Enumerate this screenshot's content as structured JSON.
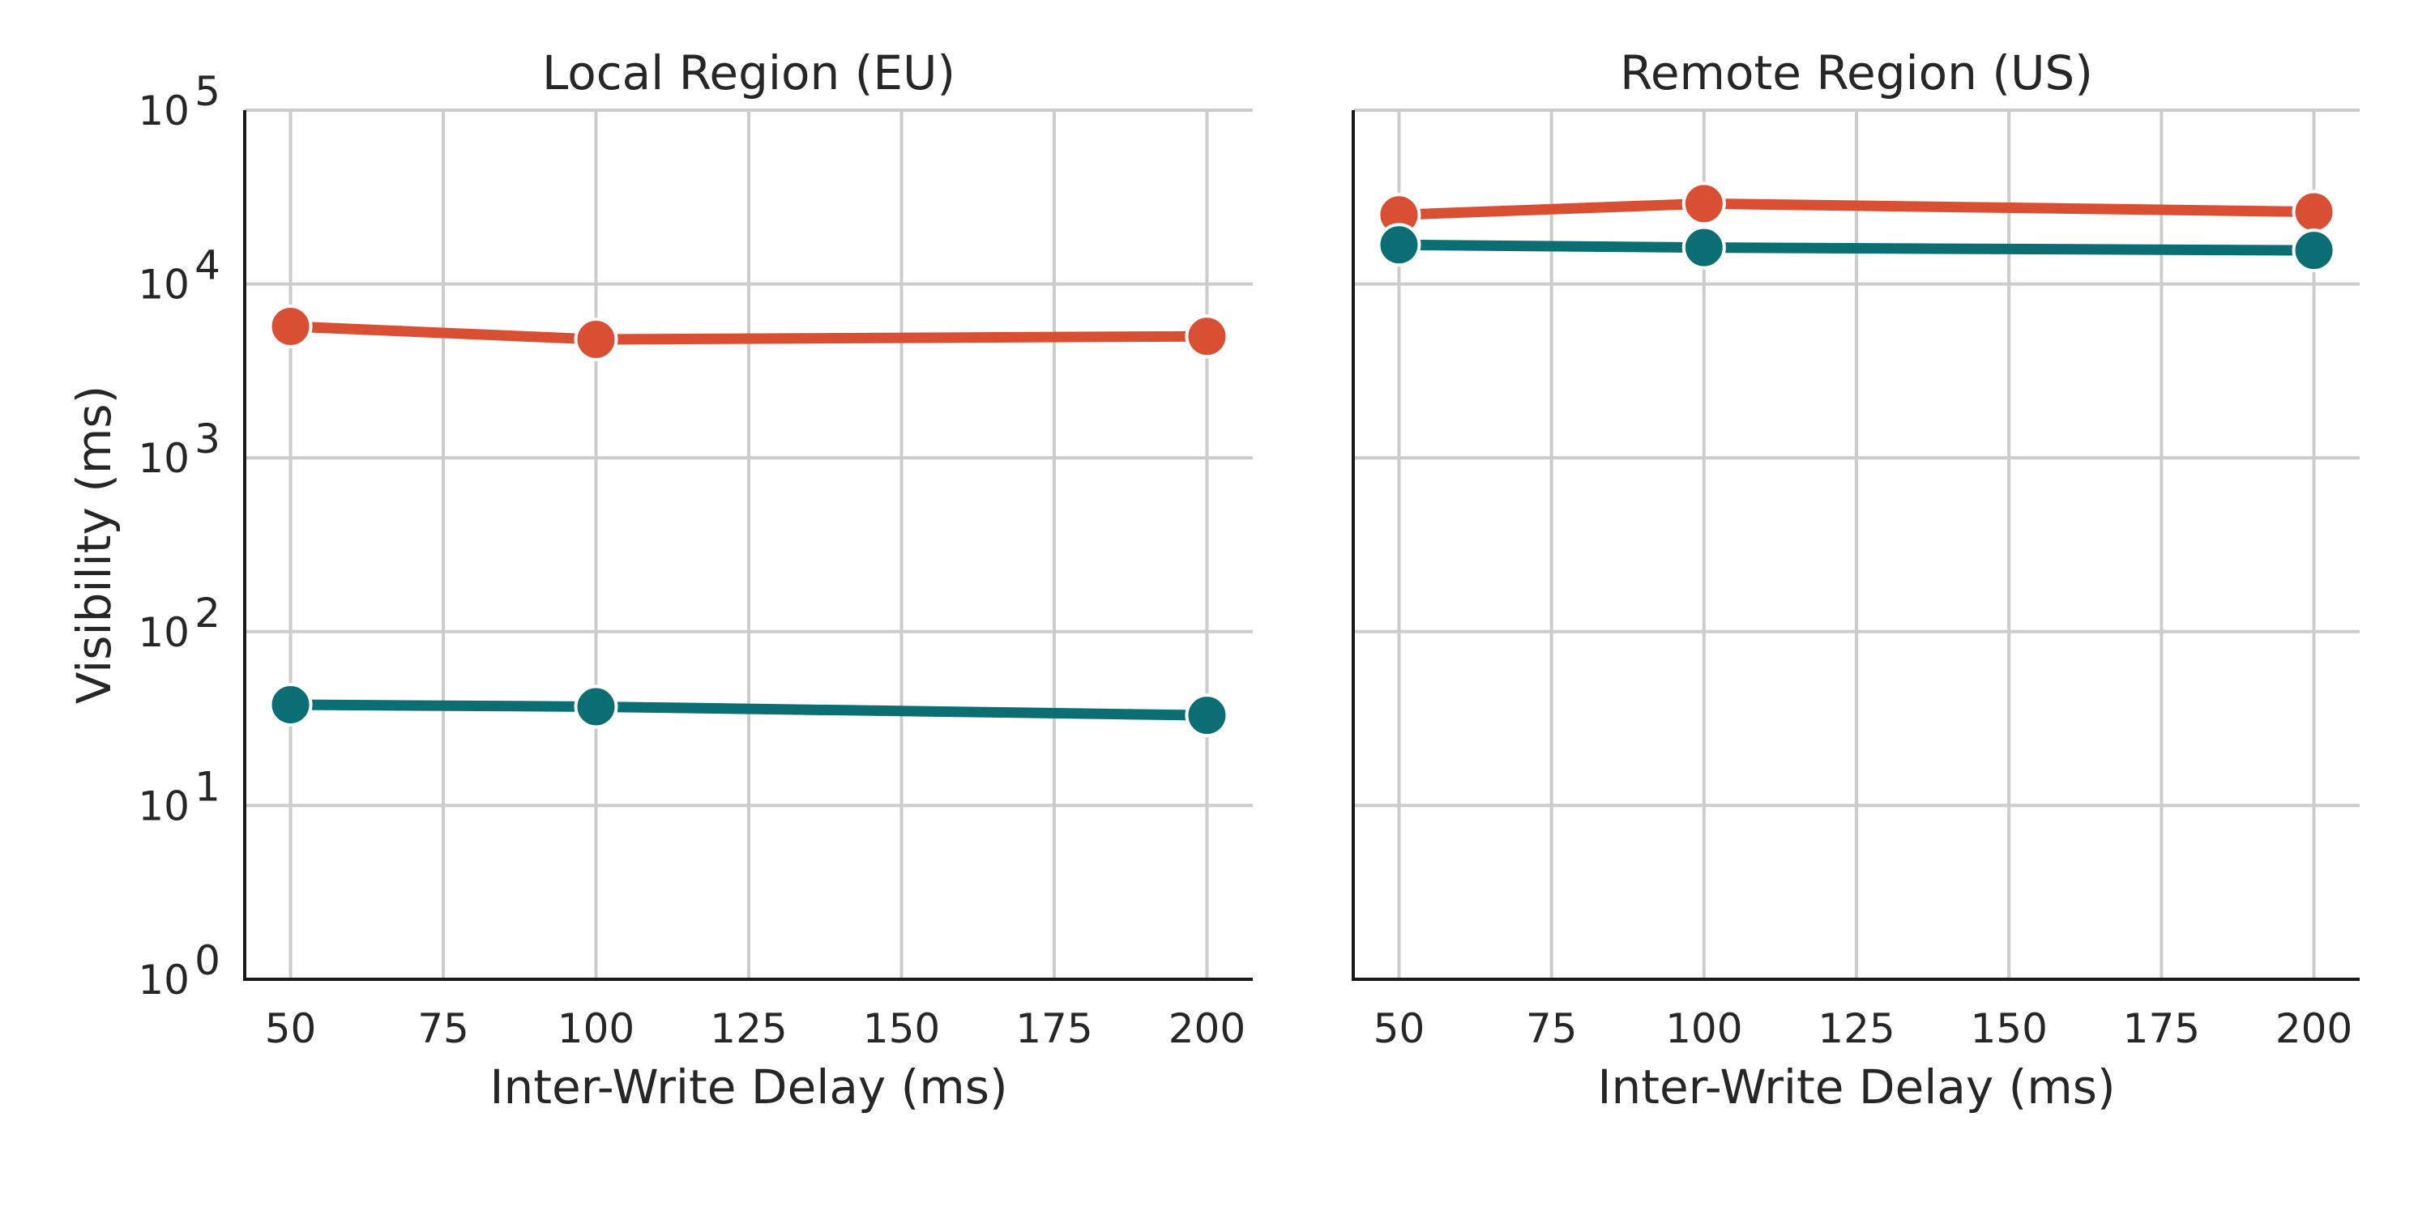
{
  "chart_data": [
    {
      "type": "line",
      "title": "Local Region (EU)",
      "xlabel": "Inter-Write Delay (ms)",
      "ylabel": "Visibility (ms)",
      "yscale": "log",
      "ylim": [
        1,
        100000
      ],
      "xlim": [
        42.5,
        207.5
      ],
      "x_ticks": [
        50,
        75,
        100,
        125,
        150,
        175,
        200
      ],
      "y_ticks": [
        1,
        10,
        100,
        1000,
        10000,
        100000
      ],
      "y_tick_labels": [
        {
          "base": "10",
          "exp": "0"
        },
        {
          "base": "10",
          "exp": "1"
        },
        {
          "base": "10",
          "exp": "2"
        },
        {
          "base": "10",
          "exp": "3"
        },
        {
          "base": "10",
          "exp": "4"
        },
        {
          "base": "10",
          "exp": "5"
        }
      ],
      "grid": true,
      "x": [
        50,
        100,
        200
      ],
      "series": [
        {
          "color": "#d94f33",
          "values": [
            5700,
            4800,
            5000
          ]
        },
        {
          "color": "#0b6e72",
          "values": [
            38,
            37,
            33
          ]
        }
      ]
    },
    {
      "type": "line",
      "title": "Remote Region (US)",
      "xlabel": "Inter-Write Delay (ms)",
      "ylabel": "",
      "yscale": "log",
      "ylim": [
        1,
        100000
      ],
      "xlim": [
        42.5,
        207.5
      ],
      "x_ticks": [
        50,
        75,
        100,
        125,
        150,
        175,
        200
      ],
      "y_ticks": [
        1,
        10,
        100,
        1000,
        10000,
        100000
      ],
      "y_tick_labels": [],
      "grid": true,
      "x": [
        50,
        100,
        200
      ],
      "series": [
        {
          "color": "#d94f33",
          "values": [
            25000,
            29000,
            26000
          ]
        },
        {
          "color": "#0b6e72",
          "values": [
            16800,
            16200,
            15600
          ]
        }
      ]
    }
  ]
}
